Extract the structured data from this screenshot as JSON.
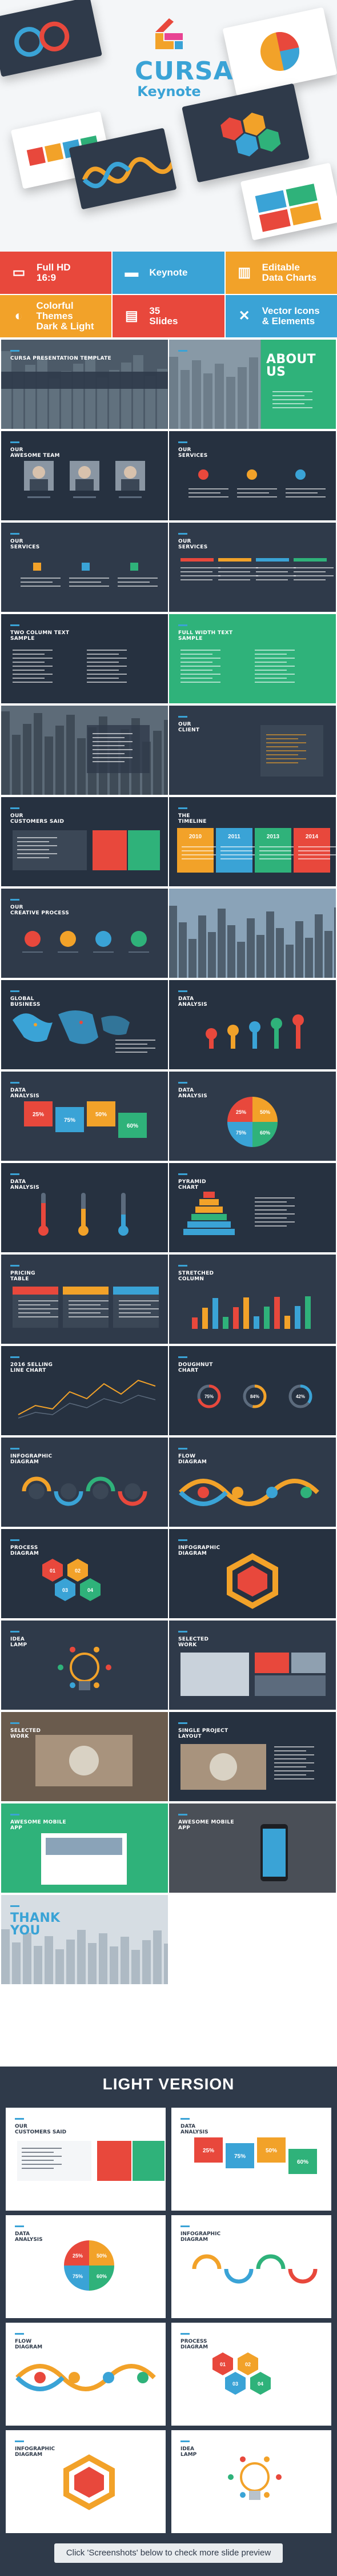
{
  "brand": {
    "title": "CURSA",
    "subtitle": "Keynote",
    "colors": {
      "blue": "#3aa3d6",
      "red": "#e8483c",
      "orange": "#f2a229",
      "green": "#2fb27a",
      "dark": "#2f3a4a",
      "darker": "#263140"
    }
  },
  "features": [
    {
      "label": "Full HD\n16:9",
      "icon": "monitor-icon",
      "color": "#e8483c",
      "glyph": "▭"
    },
    {
      "label": "Keynote",
      "icon": "folder-icon",
      "color": "#3aa3d6",
      "glyph": "▬"
    },
    {
      "label": "Editable\nData Charts",
      "icon": "chart-icon",
      "color": "#f2a229",
      "glyph": "▥"
    },
    {
      "label": "Colorful Themes\nDark & Light",
      "icon": "palette-icon",
      "color": "#f2a229",
      "glyph": "◐"
    },
    {
      "label": "35\nSlides",
      "icon": "slides-icon",
      "color": "#e8483c",
      "glyph": "▤"
    },
    {
      "label": "Vector Icons\n& Elements",
      "icon": "tools-icon",
      "color": "#3aa3d6",
      "glyph": "✕"
    }
  ],
  "slides": [
    {
      "title": "CURSA PRESENTATION TEMPLATE",
      "kind": "cover"
    },
    {
      "title": "ABOUT\nUS",
      "kind": "about"
    },
    {
      "title": "OUR\nAWESOME TEAM",
      "kind": "team"
    },
    {
      "title": "OUR\nSERVICES",
      "kind": "services-icons"
    },
    {
      "title": "OUR\nSERVICES",
      "kind": "services-dots"
    },
    {
      "title": "OUR\nSERVICES",
      "kind": "services-bars"
    },
    {
      "title": "TWO COLUMN TEXT\nSAMPLE",
      "kind": "text"
    },
    {
      "title": "FULL WIDTH TEXT\nSAMPLE",
      "kind": "text-green"
    },
    {
      "title": "",
      "kind": "city-quote"
    },
    {
      "title": "OUR\nCLIENT",
      "kind": "client"
    },
    {
      "title": "OUR\nCUSTOMERS SAID",
      "kind": "testimonial"
    },
    {
      "title": "THE\nTIMELINE",
      "kind": "timeline"
    },
    {
      "title": "OUR\nCREATIVE PROCESS",
      "kind": "process"
    },
    {
      "title": "",
      "kind": "city-photo"
    },
    {
      "title": "GLOBAL\nBUSINESS",
      "kind": "map"
    },
    {
      "title": "DATA\nANALYSIS",
      "kind": "pins"
    },
    {
      "title": "DATA\nANALYSIS",
      "kind": "tiles"
    },
    {
      "title": "DATA\nANALYSIS",
      "kind": "circle-quad"
    },
    {
      "title": "DATA\nANALYSIS",
      "kind": "thermo"
    },
    {
      "title": "PYRAMID\nCHART",
      "kind": "pyramid"
    },
    {
      "title": "PRICING\nTABLE",
      "kind": "pricing"
    },
    {
      "title": "STRETCHED\nCOLUMN",
      "kind": "columns"
    },
    {
      "title": "2016 SELLING\nLINE CHART",
      "kind": "line"
    },
    {
      "title": "DOUGHNUT\nCHART",
      "kind": "doughnut"
    },
    {
      "title": "INFOGRAPHIC\nDIAGRAM",
      "kind": "wave"
    },
    {
      "title": "FLOW\nDIAGRAM",
      "kind": "flow"
    },
    {
      "title": "PROCESS\nDIAGRAM",
      "kind": "hex"
    },
    {
      "title": "INFOGRAPHIC\nDIAGRAM",
      "kind": "hex-ring"
    },
    {
      "title": "IDEA\nLAMP",
      "kind": "lamp"
    },
    {
      "title": "SELECTED\nWORK",
      "kind": "work"
    },
    {
      "title": "SELECTED\nWORK",
      "kind": "mockup"
    },
    {
      "title": "SINGLE PROJECT\nLAYOUT",
      "kind": "project"
    },
    {
      "title": "AWESOME MOBILE\nAPP",
      "kind": "app-green"
    },
    {
      "title": "AWESOME MOBILE\nAPP",
      "kind": "app-dark"
    },
    {
      "title": "THANK\nYOU",
      "kind": "thanks"
    }
  ],
  "light_version": {
    "heading": "LIGHT VERSION",
    "slides": [
      {
        "title": "OUR\nCUSTOMERS SAID",
        "kind": "testimonial"
      },
      {
        "title": "DATA\nANALYSIS",
        "kind": "tiles"
      },
      {
        "title": "DATA\nANALYSIS",
        "kind": "circle-quad"
      },
      {
        "title": "INFOGRAPHIC\nDIAGRAM",
        "kind": "wave"
      },
      {
        "title": "FLOW\nDIAGRAM",
        "kind": "flow"
      },
      {
        "title": "PROCESS\nDIAGRAM",
        "kind": "hex"
      },
      {
        "title": "INFOGRAPHIC\nDIAGRAM",
        "kind": "hex-ring"
      },
      {
        "title": "IDEA\nLAMP",
        "kind": "lamp"
      }
    ]
  },
  "footer": {
    "note": "Click 'Screenshots' below to check more slide preview"
  },
  "sample_values": {
    "percent_a": "25%",
    "percent_b": "50%",
    "percent_c": "75%",
    "percent_d": "60%",
    "years": [
      "2010",
      "2011",
      "2013",
      "2014"
    ],
    "doughnut": [
      "75%",
      "84%",
      "42%"
    ]
  }
}
